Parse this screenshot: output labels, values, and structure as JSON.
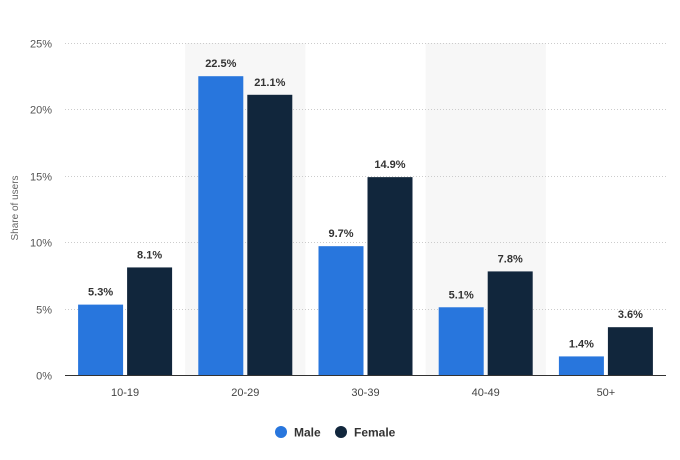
{
  "chart_data": {
    "type": "bar",
    "title": "",
    "xlabel": "",
    "ylabel": "Share of users",
    "categories": [
      "10-19",
      "20-29",
      "30-39",
      "40-49",
      "50+"
    ],
    "series": [
      {
        "name": "Male",
        "color": "#2876dd",
        "values": [
          5.3,
          22.5,
          9.7,
          5.1,
          1.4
        ],
        "labels": [
          "5.3%",
          "22.5%",
          "9.7%",
          "5.1%",
          "1.4%"
        ]
      },
      {
        "name": "Female",
        "color": "#11263c",
        "values": [
          8.1,
          21.1,
          14.9,
          7.8,
          3.6
        ],
        "labels": [
          "8.1%",
          "21.1%",
          "14.9%",
          "7.8%",
          "3.6%"
        ]
      }
    ],
    "ylim": [
      0,
      25
    ],
    "yticks": [
      0,
      5,
      10,
      15,
      20,
      25
    ],
    "ytick_labels": [
      "0%",
      "5%",
      "10%",
      "15%",
      "20%",
      "25%"
    ],
    "grid": true,
    "legend_position": "bottom-center",
    "band_color": "#f7f7f7",
    "grid_color": "#cccccc",
    "axis_color": "#333333"
  }
}
